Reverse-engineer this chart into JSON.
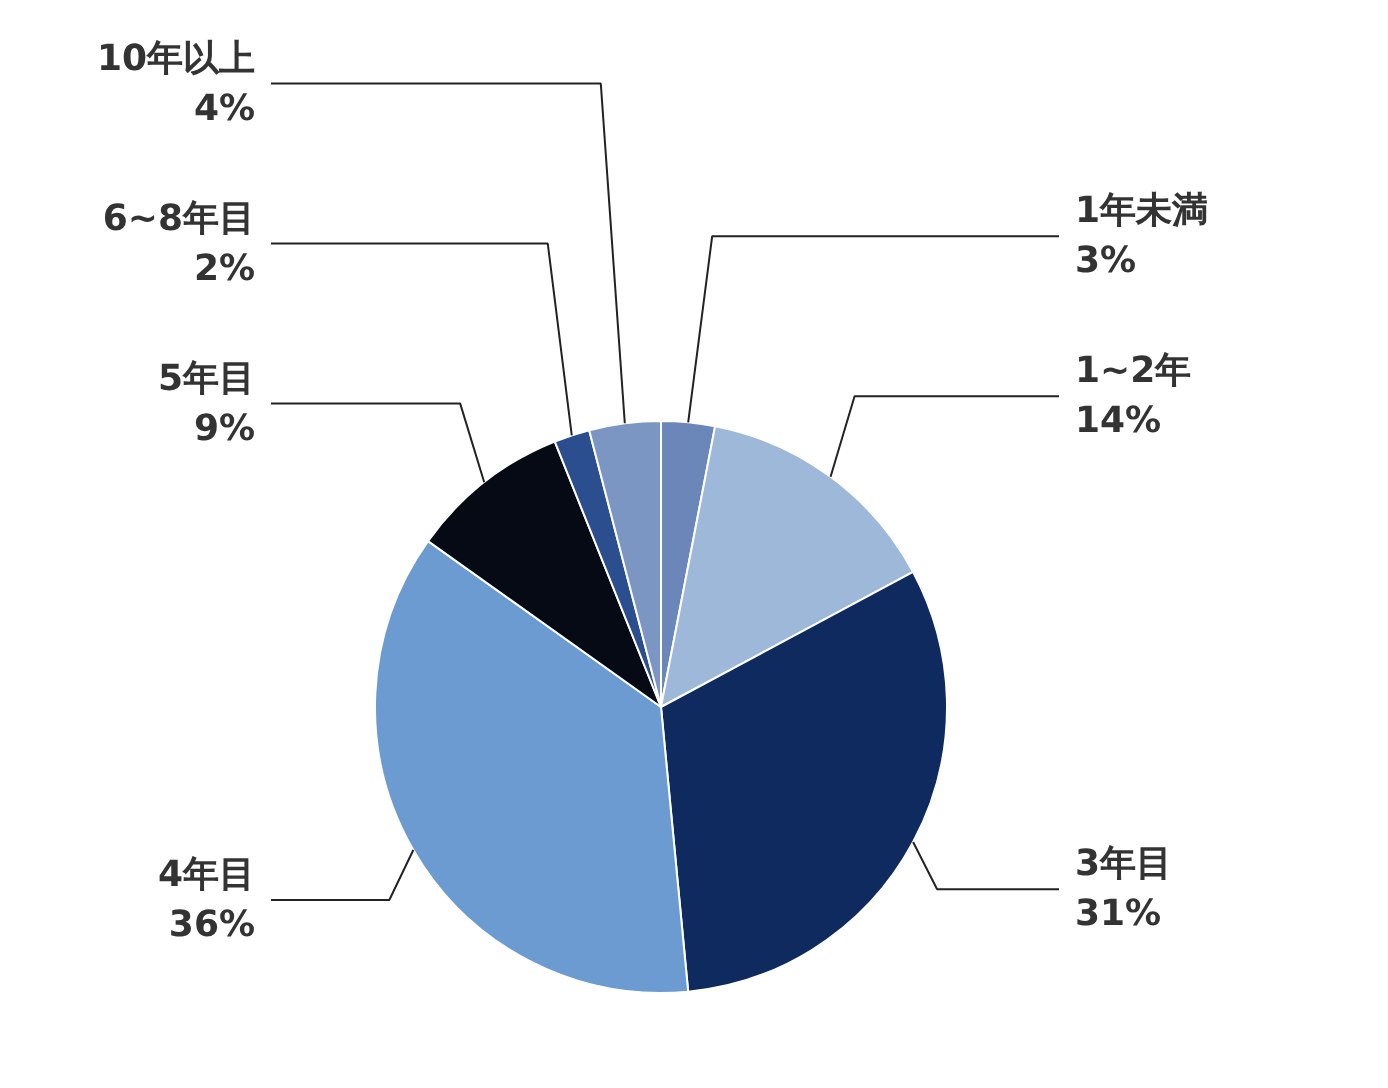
{
  "chart_data": {
    "type": "pie",
    "categories": [
      "1年未満",
      "1~2年",
      "3年目",
      "4年目",
      "5年目",
      "6~8年目",
      "10年以上"
    ],
    "values": [
      3,
      14,
      31,
      36,
      9,
      2,
      4
    ],
    "colors": [
      "#6b86b8",
      "#9db8d8",
      "#0f2a5f",
      "#6b9bd0",
      "#050a14",
      "#2a4e8e",
      "#7b96c3"
    ],
    "value_labels": [
      "3%",
      "14%",
      "31%",
      "36%",
      "9%",
      "2%",
      "4%"
    ]
  }
}
